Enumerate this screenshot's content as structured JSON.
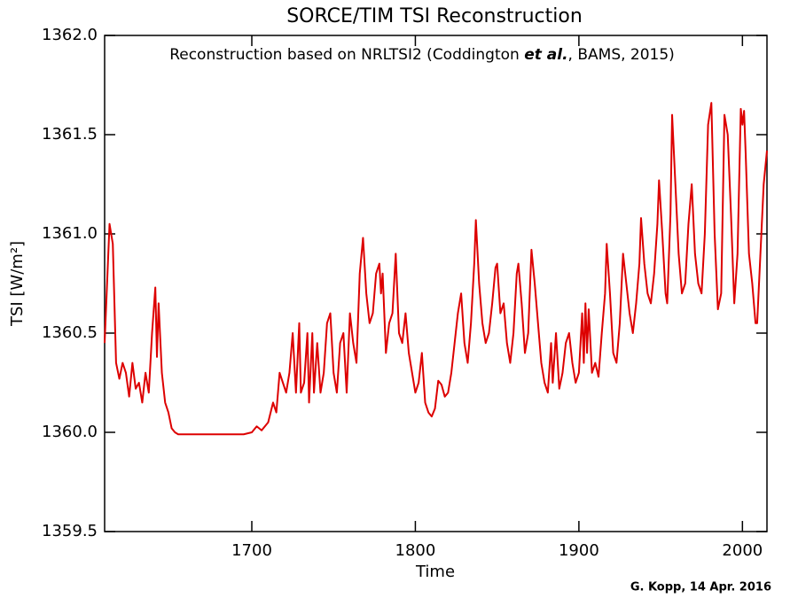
{
  "chart_data": {
    "type": "line",
    "title": "SORCE/TIM TSI Reconstruction",
    "annotation": [
      "Reconstruction based on NRLTSI2 (Coddington ",
      "et al.",
      ", BAMS, 2015)"
    ],
    "x_label": "Time",
    "y_label": "TSI [W/m²]",
    "footer": "G. Kopp, 14 Apr. 2016",
    "xlim": [
      1610,
      2015
    ],
    "xticks": [
      1700,
      1800,
      1900,
      2000
    ],
    "ylim": [
      1359.5,
      1362.0
    ],
    "yticks": [
      {
        "value": 1359.5,
        "label": "1359.5"
      },
      {
        "value": 1360.0,
        "label": "1360.0"
      },
      {
        "value": 1360.5,
        "label": "1360.5"
      },
      {
        "value": 1361.0,
        "label": "1361.0"
      },
      {
        "value": 1361.5,
        "label": "1361.5"
      },
      {
        "value": 1362.0,
        "label": "1362.0"
      }
    ],
    "series": [
      {
        "color": "#dd0000",
        "x": [
          1610,
          1613,
          1615,
          1617,
          1619,
          1621,
          1623,
          1625,
          1627,
          1629,
          1631,
          1633,
          1635,
          1637,
          1639,
          1641,
          1642,
          1643,
          1645,
          1647,
          1649,
          1651,
          1653,
          1655,
          1660,
          1665,
          1670,
          1675,
          1680,
          1685,
          1690,
          1695,
          1700,
          1703,
          1706,
          1710,
          1713,
          1715,
          1717,
          1719,
          1721,
          1723,
          1725,
          1727,
          1729,
          1730,
          1732,
          1734,
          1735,
          1737,
          1738,
          1740,
          1742,
          1744,
          1746,
          1748,
          1750,
          1752,
          1754,
          1756,
          1758,
          1760,
          1762,
          1764,
          1766,
          1768,
          1770,
          1772,
          1774,
          1776,
          1778,
          1779,
          1780,
          1782,
          1784,
          1786,
          1788,
          1790,
          1792,
          1794,
          1796,
          1798,
          1800,
          1802,
          1804,
          1806,
          1808,
          1810,
          1812,
          1814,
          1816,
          1818,
          1820,
          1822,
          1824,
          1826,
          1828,
          1830,
          1832,
          1834,
          1836,
          1837,
          1839,
          1841,
          1843,
          1845,
          1847,
          1849,
          1850,
          1852,
          1854,
          1856,
          1858,
          1860,
          1862,
          1863,
          1865,
          1867,
          1869,
          1871,
          1873,
          1875,
          1877,
          1879,
          1881,
          1883,
          1884,
          1886,
          1888,
          1890,
          1892,
          1894,
          1896,
          1898,
          1900,
          1902,
          1903,
          1904,
          1905,
          1906,
          1908,
          1910,
          1912,
          1914,
          1916,
          1917,
          1919,
          1921,
          1923,
          1925,
          1927,
          1929,
          1931,
          1933,
          1935,
          1937,
          1938,
          1940,
          1942,
          1944,
          1946,
          1948,
          1949,
          1951,
          1953,
          1954,
          1956,
          1957,
          1959,
          1961,
          1963,
          1965,
          1967,
          1969,
          1971,
          1973,
          1975,
          1977,
          1979,
          1981,
          1983,
          1985,
          1987,
          1989,
          1991,
          1993,
          1995,
          1997,
          1999,
          2000,
          2001,
          2002,
          2004,
          2006,
          2008,
          2009,
          2011,
          2013,
          2015
        ],
        "values": [
          1360.45,
          1361.05,
          1360.95,
          1360.35,
          1360.27,
          1360.35,
          1360.3,
          1360.18,
          1360.35,
          1360.22,
          1360.25,
          1360.15,
          1360.3,
          1360.2,
          1360.5,
          1360.73,
          1360.38,
          1360.65,
          1360.3,
          1360.15,
          1360.1,
          1360.02,
          1360.0,
          1359.99,
          1359.99,
          1359.99,
          1359.99,
          1359.99,
          1359.99,
          1359.99,
          1359.99,
          1359.99,
          1360.0,
          1360.03,
          1360.01,
          1360.05,
          1360.15,
          1360.1,
          1360.3,
          1360.25,
          1360.2,
          1360.3,
          1360.5,
          1360.2,
          1360.55,
          1360.2,
          1360.25,
          1360.5,
          1360.15,
          1360.5,
          1360.2,
          1360.45,
          1360.2,
          1360.3,
          1360.55,
          1360.6,
          1360.3,
          1360.2,
          1360.45,
          1360.5,
          1360.2,
          1360.6,
          1360.45,
          1360.35,
          1360.8,
          1360.98,
          1360.7,
          1360.55,
          1360.6,
          1360.8,
          1360.85,
          1360.7,
          1360.8,
          1360.4,
          1360.55,
          1360.6,
          1360.9,
          1360.5,
          1360.45,
          1360.6,
          1360.4,
          1360.3,
          1360.2,
          1360.25,
          1360.4,
          1360.15,
          1360.1,
          1360.08,
          1360.12,
          1360.26,
          1360.24,
          1360.18,
          1360.2,
          1360.3,
          1360.45,
          1360.6,
          1360.7,
          1360.45,
          1360.35,
          1360.55,
          1360.85,
          1361.07,
          1360.75,
          1360.55,
          1360.45,
          1360.5,
          1360.65,
          1360.83,
          1360.85,
          1360.6,
          1360.65,
          1360.45,
          1360.35,
          1360.5,
          1360.8,
          1360.85,
          1360.65,
          1360.4,
          1360.5,
          1360.92,
          1360.75,
          1360.55,
          1360.35,
          1360.25,
          1360.2,
          1360.45,
          1360.25,
          1360.5,
          1360.22,
          1360.3,
          1360.45,
          1360.5,
          1360.35,
          1360.25,
          1360.3,
          1360.6,
          1360.35,
          1360.65,
          1360.4,
          1360.62,
          1360.3,
          1360.35,
          1360.28,
          1360.5,
          1360.7,
          1360.95,
          1360.7,
          1360.4,
          1360.35,
          1360.55,
          1360.9,
          1360.75,
          1360.6,
          1360.5,
          1360.65,
          1360.85,
          1361.08,
          1360.85,
          1360.7,
          1360.65,
          1360.8,
          1361.05,
          1361.27,
          1361.0,
          1360.7,
          1360.65,
          1361.1,
          1361.6,
          1361.25,
          1360.9,
          1360.7,
          1360.75,
          1361.05,
          1361.25,
          1360.9,
          1360.75,
          1360.7,
          1361.0,
          1361.55,
          1361.66,
          1361.0,
          1360.62,
          1360.7,
          1361.6,
          1361.5,
          1361.1,
          1360.65,
          1360.9,
          1361.63,
          1361.55,
          1361.62,
          1361.4,
          1360.9,
          1360.75,
          1360.55,
          1360.55,
          1360.9,
          1361.25,
          1361.42
        ]
      }
    ]
  }
}
